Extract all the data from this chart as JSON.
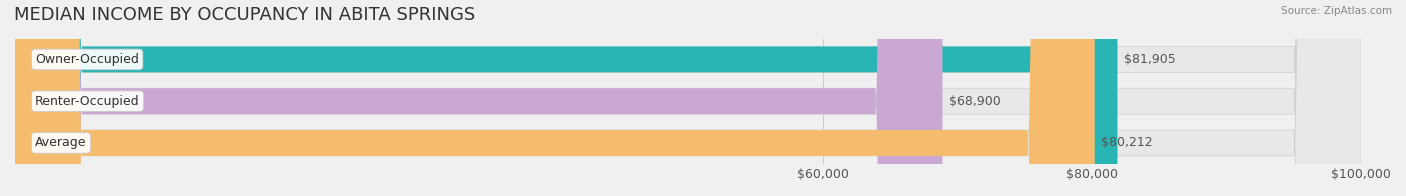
{
  "title": "MEDIAN INCOME BY OCCUPANCY IN ABITA SPRINGS",
  "source": "Source: ZipAtlas.com",
  "categories": [
    "Owner-Occupied",
    "Renter-Occupied",
    "Average"
  ],
  "values": [
    81905,
    68900,
    80212
  ],
  "bar_colors": [
    "#2ab5b5",
    "#c9a8d4",
    "#f5bc6e"
  ],
  "label_colors": [
    "#2ab5b5",
    "#c9a8d4",
    "#f5bc6e"
  ],
  "value_labels": [
    "$81,905",
    "$68,900",
    "$80,212"
  ],
  "xlim": [
    0,
    100000
  ],
  "xticks": [
    60000,
    80000,
    100000
  ],
  "xtick_labels": [
    "$60,000",
    "$80,000",
    "$100,000"
  ],
  "background_color": "#f0f0f0",
  "bar_background_color": "#e8e8e8",
  "title_fontsize": 13,
  "tick_fontsize": 9,
  "label_fontsize": 9,
  "value_fontsize": 9
}
